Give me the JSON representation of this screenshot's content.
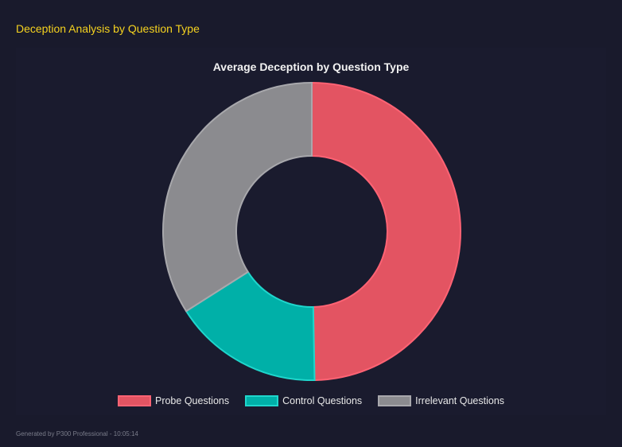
{
  "header": {
    "title": "Deception Analysis by Question Type"
  },
  "footer": {
    "text": "Generated by P300 Professional - 10:05:14"
  },
  "chart_data": {
    "type": "pie",
    "variant": "doughnut",
    "title": "Average Deception by Question Type",
    "categories": [
      "Probe Questions",
      "Control Questions",
      "Irrelevant Questions"
    ],
    "values": [
      49.7,
      16.3,
      34.0
    ],
    "colors": [
      "#e35462",
      "#00b0a8",
      "#8b8b8f"
    ],
    "border_colors": [
      "#ff6374",
      "#1fd6cc",
      "#a8a8ac"
    ],
    "legend": "bottom"
  }
}
